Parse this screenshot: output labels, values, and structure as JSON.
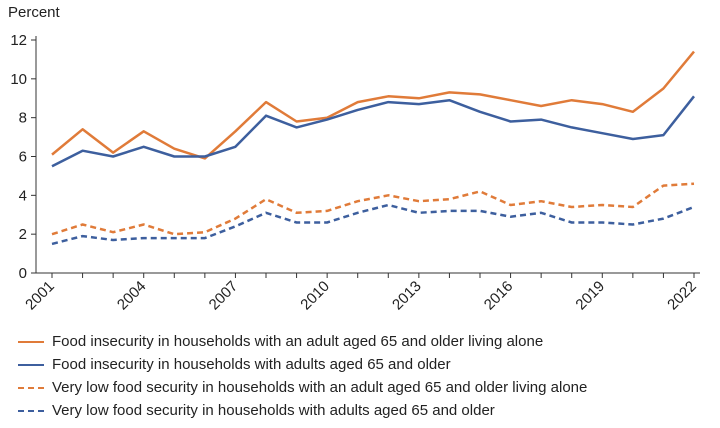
{
  "chart_data": {
    "type": "line",
    "title": "",
    "ylabel": "Percent",
    "xlabel": "",
    "ylim": [
      0,
      12
    ],
    "yticks": [
      0,
      2,
      4,
      6,
      8,
      10,
      12
    ],
    "xlim": [
      2001,
      2022
    ],
    "xticks": [
      2001,
      2004,
      2007,
      2010,
      2013,
      2016,
      2019,
      2022
    ],
    "x": [
      2001,
      2002,
      2003,
      2004,
      2005,
      2006,
      2007,
      2008,
      2009,
      2010,
      2011,
      2012,
      2013,
      2014,
      2015,
      2016,
      2017,
      2018,
      2019,
      2020,
      2021,
      2022
    ],
    "grid": false,
    "legend_position": "bottom",
    "series": [
      {
        "name": "Food insecurity in households with an adult aged 65 and older living alone",
        "color": "#E07B39",
        "style": "solid",
        "values": [
          6.1,
          7.4,
          6.2,
          7.3,
          6.4,
          5.9,
          7.3,
          8.8,
          7.8,
          8.0,
          8.8,
          9.1,
          9.0,
          9.3,
          9.2,
          8.9,
          8.6,
          8.9,
          8.7,
          8.3,
          9.5,
          11.4
        ]
      },
      {
        "name": "Food insecurity in households with adults aged 65 and older",
        "color": "#3D5F9E",
        "style": "solid",
        "values": [
          5.5,
          6.3,
          6.0,
          6.5,
          6.0,
          6.0,
          6.5,
          8.1,
          7.5,
          7.9,
          8.4,
          8.8,
          8.7,
          8.9,
          8.3,
          7.8,
          7.9,
          7.5,
          7.2,
          6.9,
          7.1,
          9.1
        ]
      },
      {
        "name": "Very low food security in households with an adult aged 65 and older living alone",
        "color": "#E07B39",
        "style": "dashed",
        "values": [
          2.0,
          2.5,
          2.1,
          2.5,
          2.0,
          2.1,
          2.8,
          3.8,
          3.1,
          3.2,
          3.7,
          4.0,
          3.7,
          3.8,
          4.2,
          3.5,
          3.7,
          3.4,
          3.5,
          3.4,
          4.5,
          4.6
        ]
      },
      {
        "name": "Very low food security in households with adults aged 65 and older",
        "color": "#3D5F9E",
        "style": "dashed",
        "values": [
          1.5,
          1.9,
          1.7,
          1.8,
          1.8,
          1.8,
          2.4,
          3.1,
          2.6,
          2.6,
          3.1,
          3.5,
          3.1,
          3.2,
          3.2,
          2.9,
          3.1,
          2.6,
          2.6,
          2.5,
          2.8,
          3.4
        ]
      }
    ]
  }
}
